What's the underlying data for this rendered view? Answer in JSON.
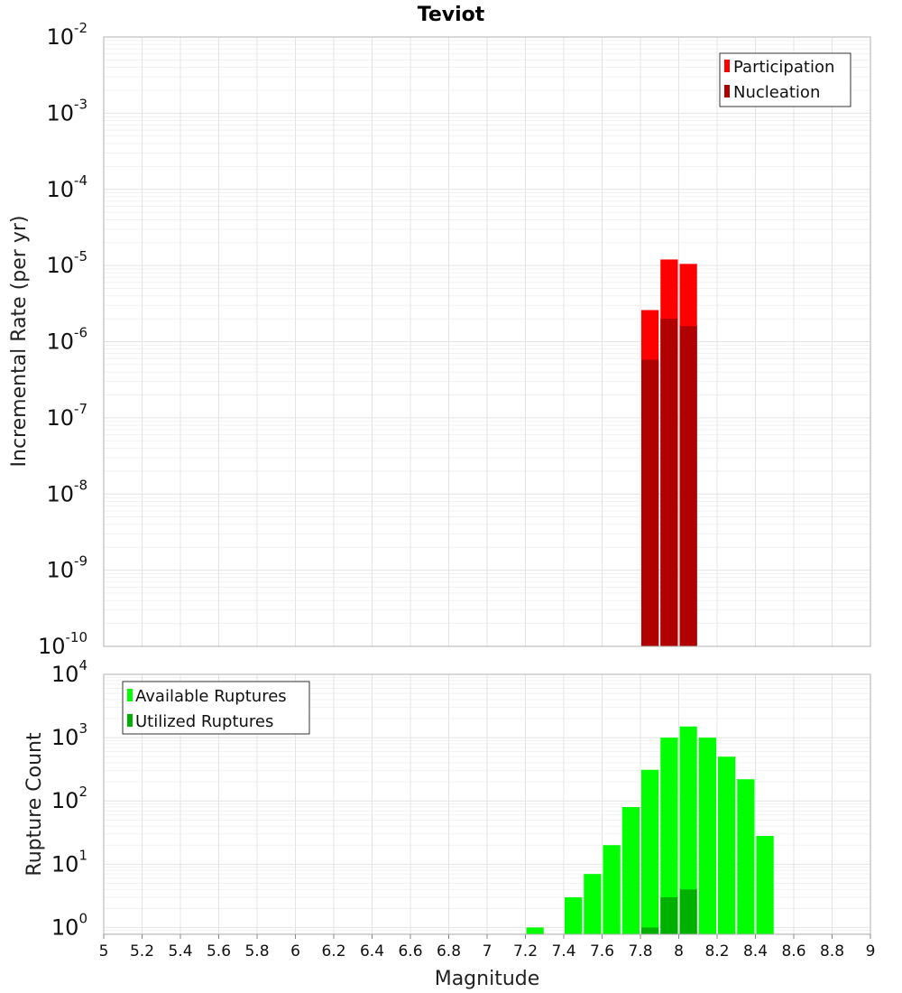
{
  "chart_data": [
    {
      "type": "bar",
      "title": "Teviot",
      "ylabel": "Incremental Rate (per yr)",
      "xlabel": "",
      "yscale": "log",
      "ylim": [
        1e-10,
        0.01
      ],
      "xlim": [
        5,
        9
      ],
      "ytick_labels": [
        {
          "base": "10",
          "exp": "-10",
          "value": 1e-10
        },
        {
          "base": "10",
          "exp": "-9",
          "value": 1e-09
        },
        {
          "base": "10",
          "exp": "-8",
          "value": 1e-08
        },
        {
          "base": "10",
          "exp": "-7",
          "value": 1e-07
        },
        {
          "base": "10",
          "exp": "-6",
          "value": 1e-06
        },
        {
          "base": "10",
          "exp": "-5",
          "value": 1e-05
        },
        {
          "base": "10",
          "exp": "-4",
          "value": 0.0001
        },
        {
          "base": "10",
          "exp": "-3",
          "value": 0.001
        },
        {
          "base": "10",
          "exp": "-2",
          "value": 0.01
        }
      ],
      "legend_position": "top-right",
      "series": [
        {
          "name": "Participation",
          "color": "#ff0000",
          "points": [
            [
              7.85,
              2.6e-06
            ],
            [
              7.95,
              1.2e-05
            ],
            [
              8.05,
              1.05e-05
            ]
          ]
        },
        {
          "name": "Nucleation",
          "color": "#b00000",
          "points": [
            [
              7.85,
              5.8e-07
            ],
            [
              7.95,
              2e-06
            ],
            [
              8.05,
              1.6e-06
            ]
          ]
        }
      ]
    },
    {
      "type": "bar",
      "title": "",
      "ylabel": "Rupture Count",
      "xlabel": "Magnitude",
      "yscale": "log",
      "ylim": [
        0.78,
        10000
      ],
      "xlim": [
        5,
        9
      ],
      "ytick_labels": [
        {
          "base": "10",
          "exp": "0",
          "value": 1
        },
        {
          "base": "10",
          "exp": "1",
          "value": 10
        },
        {
          "base": "10",
          "exp": "2",
          "value": 100
        },
        {
          "base": "10",
          "exp": "3",
          "value": 1000
        },
        {
          "base": "10",
          "exp": "4",
          "value": 10000
        }
      ],
      "xtick_labels": [
        "5",
        "5.2",
        "5.4",
        "5.6",
        "5.8",
        "6",
        "6.2",
        "6.4",
        "6.6",
        "6.8",
        "7",
        "7.2",
        "7.4",
        "7.6",
        "7.8",
        "8",
        "8.2",
        "8.4",
        "8.6",
        "8.8",
        "9"
      ],
      "legend_position": "top-left",
      "series": [
        {
          "name": "Available Ruptures",
          "color": "#00ff00",
          "points": [
            [
              7.25,
              1
            ],
            [
              7.45,
              3
            ],
            [
              7.55,
              7
            ],
            [
              7.65,
              20
            ],
            [
              7.75,
              80
            ],
            [
              7.85,
              310
            ],
            [
              7.95,
              1000
            ],
            [
              8.05,
              1500
            ],
            [
              8.15,
              1000
            ],
            [
              8.25,
              500
            ],
            [
              8.35,
              220
            ],
            [
              8.45,
              28
            ]
          ]
        },
        {
          "name": "Utilized Ruptures",
          "color": "#00b000",
          "points": [
            [
              7.85,
              1
            ],
            [
              7.95,
              3
            ],
            [
              8.05,
              4
            ]
          ]
        }
      ]
    }
  ]
}
